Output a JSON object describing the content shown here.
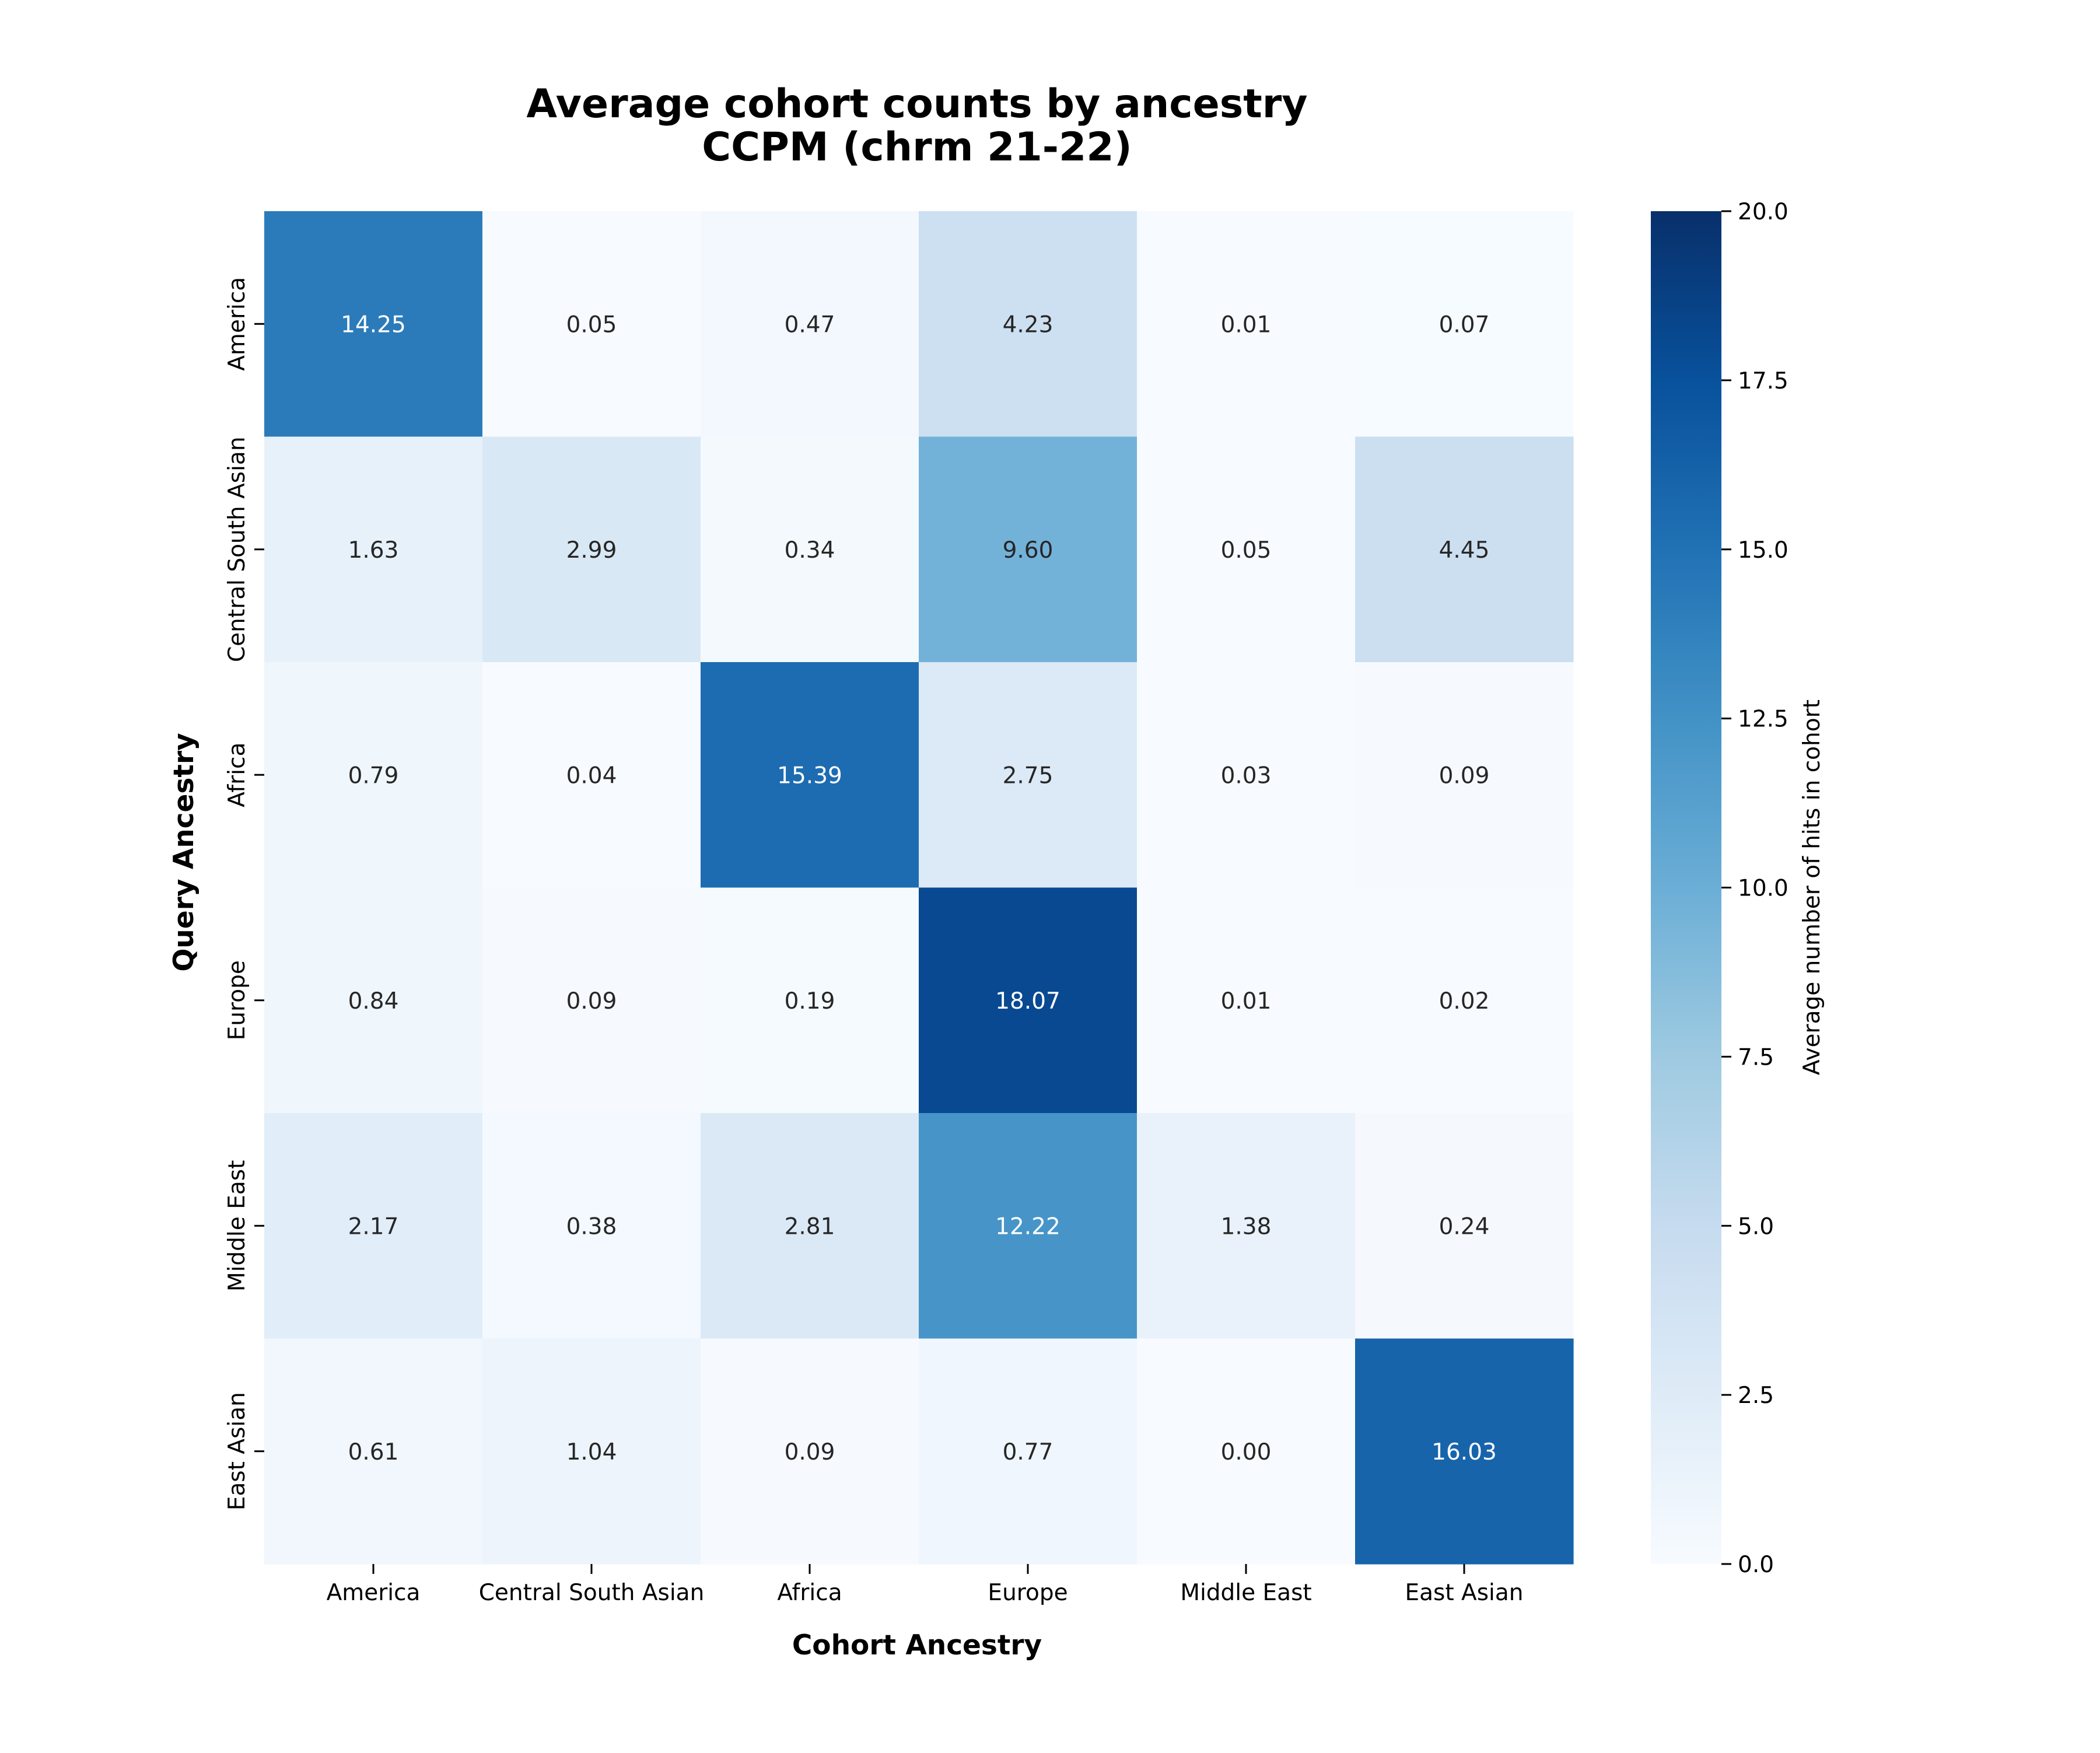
{
  "chart_data": {
    "type": "heatmap",
    "title": [
      "Average cohort counts by ancestry",
      "CCPM (chrm 21-22)"
    ],
    "xlabel": "Cohort Ancestry",
    "ylabel": "Query Ancestry",
    "x_categories": [
      "America",
      "Central South Asian",
      "Africa",
      "Europe",
      "Middle East",
      "East Asian"
    ],
    "y_categories": [
      "America",
      "Central South Asian",
      "Africa",
      "Europe",
      "Middle East",
      "East Asian"
    ],
    "values": [
      [
        14.25,
        0.05,
        0.47,
        4.23,
        0.01,
        0.07
      ],
      [
        1.63,
        2.99,
        0.34,
        9.6,
        0.05,
        4.45
      ],
      [
        0.79,
        0.04,
        15.39,
        2.75,
        0.03,
        0.09
      ],
      [
        0.84,
        0.09,
        0.19,
        18.07,
        0.01,
        0.02
      ],
      [
        2.17,
        0.38,
        2.81,
        12.22,
        1.38,
        0.24
      ],
      [
        0.61,
        1.04,
        0.09,
        0.77,
        0.0,
        16.03
      ]
    ],
    "value_format_decimals": 2,
    "colormap": "Blues",
    "vmin": 0.0,
    "vmax": 20.0,
    "colorbar": {
      "label": "Average number of hits in cohort",
      "ticks": [
        0.0,
        2.5,
        5.0,
        7.5,
        10.0,
        12.5,
        15.0,
        17.5,
        20.0
      ],
      "tick_labels": [
        "0.0",
        "2.5",
        "5.0",
        "7.5",
        "10.0",
        "12.5",
        "15.0",
        "17.5",
        "20.0"
      ]
    },
    "grid": false
  }
}
